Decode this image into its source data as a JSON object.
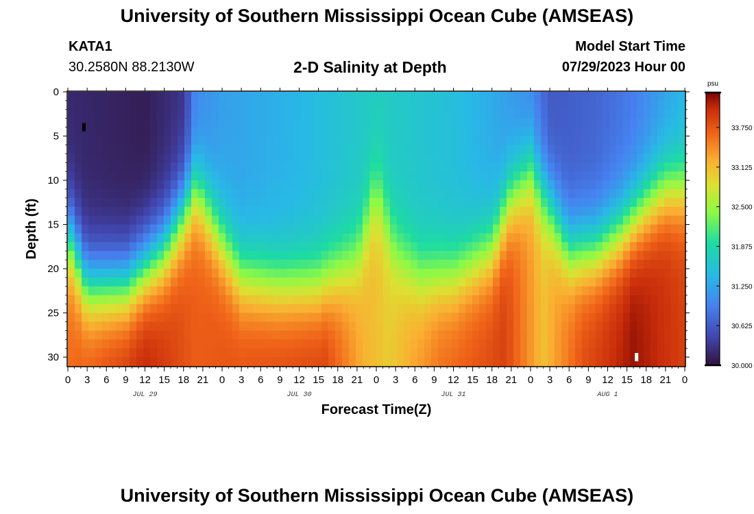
{
  "header": {
    "title": "University of Southern Mississippi Ocean Cube (AMSEAS)",
    "station": "KATA1",
    "coords": "30.2580N  88.2130W",
    "plot_title": "2-D Salinity at Depth",
    "model_start_label": "Model Start Time",
    "model_start_value": "07/29/2023 Hour 00"
  },
  "footer": {
    "title": "University of Southern Mississippi Ocean Cube (AMSEAS)"
  },
  "chart_data": {
    "type": "heatmap",
    "title": "2-D Salinity at Depth",
    "xlabel": "Forecast Time(Z)",
    "ylabel": "Depth (ft)",
    "x_unit": "hours since 07/29/2023 00Z",
    "xlim": [
      0,
      96
    ],
    "ylim": [
      0,
      31
    ],
    "x_tick_values": [
      0,
      3,
      6,
      9,
      12,
      15,
      18,
      21,
      24,
      27,
      30,
      33,
      36,
      39,
      42,
      45,
      48,
      51,
      54,
      57,
      60,
      63,
      66,
      69,
      72,
      75,
      78,
      81,
      84,
      87,
      90,
      93,
      96
    ],
    "x_tick_labels": [
      "0",
      "3",
      "6",
      "9",
      "12",
      "15",
      "18",
      "21",
      "0",
      "3",
      "6",
      "9",
      "12",
      "15",
      "18",
      "21",
      "0",
      "3",
      "6",
      "9",
      "12",
      "15",
      "18",
      "21",
      "0",
      "3",
      "6",
      "9",
      "12",
      "15",
      "18",
      "21",
      "0"
    ],
    "y_tick_values": [
      0,
      5,
      10,
      15,
      20,
      25,
      30
    ],
    "y_tick_labels": [
      "0",
      "5",
      "10",
      "15",
      "20",
      "25",
      "30"
    ],
    "day_labels": [
      {
        "label": "JUL 29",
        "hour": 12
      },
      {
        "label": "JUL 30",
        "hour": 36
      },
      {
        "label": "JUL 31",
        "hour": 60
      },
      {
        "label": "AUG 1",
        "hour": 84
      }
    ],
    "colorbar": {
      "unit": "psu",
      "min": 30.0,
      "max": 34.3,
      "tick_values": [
        30.0,
        30.625,
        31.25,
        31.875,
        32.5,
        33.125,
        33.75
      ],
      "tick_labels": [
        "30.000",
        "30.625",
        "31.250",
        "31.875",
        "32.500",
        "33.125",
        "33.750"
      ]
    },
    "halocline_depth_ft": [
      {
        "hour": 0,
        "depth": 16
      },
      {
        "hour": 3,
        "depth": 22
      },
      {
        "hour": 9,
        "depth": 22
      },
      {
        "hour": 15,
        "depth": 18
      },
      {
        "hour": 20,
        "depth": 11
      },
      {
        "hour": 24,
        "depth": 17
      },
      {
        "hour": 27,
        "depth": 21
      },
      {
        "hour": 33,
        "depth": 22
      },
      {
        "hour": 39,
        "depth": 22
      },
      {
        "hour": 45,
        "depth": 19
      },
      {
        "hour": 48,
        "depth": 11
      },
      {
        "hour": 51,
        "depth": 18
      },
      {
        "hour": 55,
        "depth": 21
      },
      {
        "hour": 60,
        "depth": 21
      },
      {
        "hour": 66,
        "depth": 18
      },
      {
        "hour": 69,
        "depth": 12
      },
      {
        "hour": 72,
        "depth": 9
      },
      {
        "hour": 75,
        "depth": 13
      },
      {
        "hour": 78,
        "depth": 18
      },
      {
        "hour": 82,
        "depth": 18
      },
      {
        "hour": 86,
        "depth": 16
      },
      {
        "hour": 90,
        "depth": 13
      },
      {
        "hour": 93,
        "depth": 11
      },
      {
        "hour": 96,
        "depth": 11
      }
    ],
    "surface_salinity_psu": [
      {
        "hour": 0,
        "value": 30.2
      },
      {
        "hour": 12,
        "value": 30.1
      },
      {
        "hour": 18,
        "value": 30.3
      },
      {
        "hour": 20,
        "value": 31.0
      },
      {
        "hour": 24,
        "value": 31.2
      },
      {
        "hour": 36,
        "value": 31.4
      },
      {
        "hour": 48,
        "value": 31.7
      },
      {
        "hour": 60,
        "value": 31.5
      },
      {
        "hour": 66,
        "value": 31.3
      },
      {
        "hour": 72,
        "value": 31.0
      },
      {
        "hour": 75,
        "value": 30.6
      },
      {
        "hour": 82,
        "value": 30.7
      },
      {
        "hour": 88,
        "value": 30.9
      },
      {
        "hour": 96,
        "value": 31.4
      }
    ],
    "bottom_salinity_psu": [
      {
        "hour": 0,
        "value": 33.6
      },
      {
        "hour": 12,
        "value": 34.1
      },
      {
        "hour": 20,
        "value": 33.7
      },
      {
        "hour": 28,
        "value": 33.8
      },
      {
        "hour": 40,
        "value": 33.9
      },
      {
        "hour": 46,
        "value": 33.2
      },
      {
        "hour": 50,
        "value": 33.0
      },
      {
        "hour": 58,
        "value": 33.6
      },
      {
        "hour": 68,
        "value": 33.9
      },
      {
        "hour": 74,
        "value": 33.1
      },
      {
        "hour": 80,
        "value": 33.8
      },
      {
        "hour": 88,
        "value": 34.2
      },
      {
        "hour": 96,
        "value": 33.9
      }
    ],
    "markers": [
      {
        "name": "min-marker",
        "hour": 2.5,
        "depth": 4,
        "color": "#000000"
      },
      {
        "name": "max-marker",
        "hour": 88.5,
        "depth": 30,
        "color": "#ffffff"
      }
    ]
  }
}
